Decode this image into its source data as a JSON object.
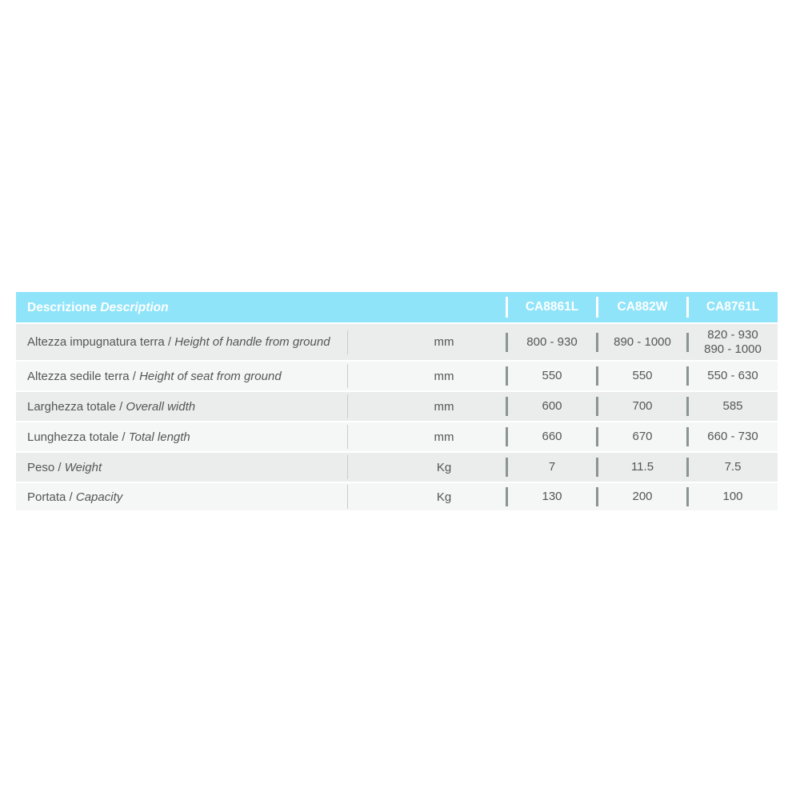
{
  "header": {
    "desc_label": "Descrizione",
    "desc_label_en": "Description",
    "models": [
      "CA8861L",
      "CA882W",
      "CA8761L"
    ]
  },
  "rows": [
    {
      "it": "Altezza impugnatura terra / ",
      "en": "Height of handle from ground",
      "unit": "mm",
      "values": [
        "800 - 930",
        "890 - 1000",
        "820 - 930\n890 - 1000"
      ]
    },
    {
      "it": "Altezza sedile terra / ",
      "en": "Height of seat from ground",
      "unit": "mm",
      "values": [
        "550",
        "550",
        "550 - 630"
      ]
    },
    {
      "it": "Larghezza totale / ",
      "en": "Overall width",
      "unit": "mm",
      "values": [
        "600",
        "700",
        "585"
      ]
    },
    {
      "it": "Lunghezza totale / ",
      "en": "Total length",
      "unit": "mm",
      "values": [
        "660",
        "670",
        "660 - 730"
      ]
    },
    {
      "it": "Peso / ",
      "en": "Weight",
      "unit": "Kg",
      "values": [
        "7",
        "11.5",
        "7.5"
      ]
    },
    {
      "it": "Portata / ",
      "en": "Capacity",
      "unit": "Kg",
      "values": [
        "130",
        "200",
        "100"
      ]
    }
  ]
}
